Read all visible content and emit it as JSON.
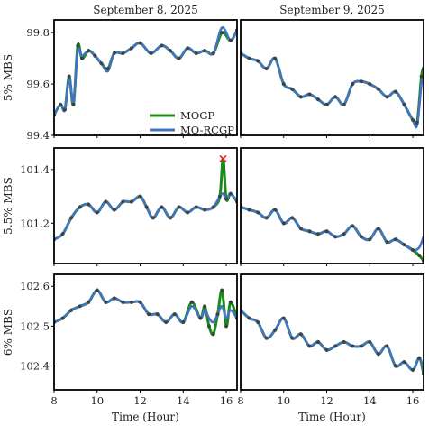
{
  "chart_data": {
    "type": "line",
    "columns": [
      "September 8, 2025",
      "September 9, 2025"
    ],
    "rows": [
      "5% MBS",
      "5.5% MBS",
      "6% MBS"
    ],
    "xlabel": "Time (Hour)",
    "xlim": [
      8,
      16.5
    ],
    "xticks": [
      8,
      10,
      12,
      14,
      16
    ],
    "legend": {
      "placement": "lower-right of top-left panel",
      "entries": [
        "MOGP",
        "MO-RCGP"
      ]
    },
    "colors": {
      "MOGP": "#1a8a1a",
      "MO-RCGP": "#4472c4",
      "observations": "#3a3a3a",
      "outlier": "#e02020"
    },
    "panels": [
      {
        "row": "5% MBS",
        "column": "September 8, 2025",
        "ylim": [
          99.4,
          99.85
        ],
        "yticks": [
          99.4,
          99.6,
          99.8
        ],
        "series": [
          {
            "name": "MOGP",
            "x": [
              8.0,
              8.3,
              8.5,
              8.7,
              8.9,
              9.1,
              9.3,
              9.6,
              9.9,
              10.2,
              10.5,
              10.8,
              11.2,
              11.6,
              12.0,
              12.5,
              13.0,
              13.4,
              13.8,
              14.2,
              14.6,
              15.0,
              15.4,
              15.8,
              16.2,
              16.5
            ],
            "y": [
              99.48,
              99.52,
              99.5,
              99.63,
              99.52,
              99.75,
              99.7,
              99.73,
              99.71,
              99.68,
              99.66,
              99.72,
              99.72,
              99.74,
              99.76,
              99.72,
              99.75,
              99.73,
              99.7,
              99.74,
              99.72,
              99.73,
              99.72,
              99.8,
              99.77,
              99.81
            ]
          },
          {
            "name": "MO-RCGP",
            "x": [
              8.0,
              8.3,
              8.5,
              8.7,
              8.9,
              9.1,
              9.3,
              9.6,
              9.9,
              10.2,
              10.5,
              10.8,
              11.2,
              11.6,
              12.0,
              12.5,
              13.0,
              13.4,
              13.8,
              14.2,
              14.6,
              15.0,
              15.4,
              15.8,
              16.2,
              16.5
            ],
            "y": [
              99.48,
              99.52,
              99.5,
              99.62,
              99.53,
              99.73,
              99.71,
              99.73,
              99.71,
              99.68,
              99.65,
              99.72,
              99.72,
              99.74,
              99.76,
              99.72,
              99.75,
              99.73,
              99.7,
              99.74,
              99.72,
              99.73,
              99.72,
              99.82,
              99.77,
              99.81
            ]
          }
        ]
      },
      {
        "row": "5% MBS",
        "column": "September 9, 2025",
        "ylim": [
          99.4,
          99.85
        ],
        "series": [
          {
            "name": "MOGP",
            "x": [
              8.0,
              8.4,
              8.8,
              9.2,
              9.6,
              10.0,
              10.4,
              10.8,
              11.2,
              11.6,
              12.0,
              12.4,
              12.8,
              13.2,
              13.6,
              14.0,
              14.4,
              14.8,
              15.2,
              15.6,
              16.0,
              16.2,
              16.4,
              16.5
            ],
            "y": [
              99.72,
              99.7,
              99.69,
              99.66,
              99.7,
              99.6,
              99.58,
              99.55,
              99.56,
              99.54,
              99.52,
              99.55,
              99.52,
              99.6,
              99.61,
              99.6,
              99.58,
              99.55,
              99.57,
              99.52,
              99.46,
              99.45,
              99.63,
              99.66
            ]
          },
          {
            "name": "MO-RCGP",
            "x": [
              8.0,
              8.4,
              8.8,
              9.2,
              9.6,
              10.0,
              10.4,
              10.8,
              11.2,
              11.6,
              12.0,
              12.4,
              12.8,
              13.2,
              13.6,
              14.0,
              14.4,
              14.8,
              15.2,
              15.6,
              16.0,
              16.2,
              16.4,
              16.5
            ],
            "y": [
              99.72,
              99.7,
              99.69,
              99.66,
              99.7,
              99.6,
              99.58,
              99.55,
              99.56,
              99.54,
              99.52,
              99.55,
              99.52,
              99.6,
              99.61,
              99.6,
              99.58,
              99.55,
              99.57,
              99.52,
              99.46,
              99.44,
              99.6,
              99.62
            ]
          }
        ]
      },
      {
        "row": "5.5% MBS",
        "column": "September 8, 2025",
        "ylim": [
          101.05,
          101.48
        ],
        "yticks": [
          101.2,
          101.4
        ],
        "outlier": {
          "x": 15.85,
          "y": 101.44
        },
        "series": [
          {
            "name": "MOGP",
            "x": [
              8.0,
              8.4,
              8.8,
              9.2,
              9.6,
              10.0,
              10.4,
              10.8,
              11.2,
              11.6,
              12.0,
              12.3,
              12.6,
              13.0,
              13.4,
              13.8,
              14.2,
              14.6,
              15.0,
              15.4,
              15.7,
              15.85,
              16.0,
              16.2,
              16.5
            ],
            "y": [
              101.14,
              101.16,
              101.22,
              101.26,
              101.27,
              101.24,
              101.28,
              101.25,
              101.28,
              101.28,
              101.3,
              101.26,
              101.22,
              101.26,
              101.22,
              101.26,
              101.24,
              101.26,
              101.25,
              101.26,
              101.3,
              101.44,
              101.29,
              101.31,
              101.28
            ]
          },
          {
            "name": "MO-RCGP",
            "x": [
              8.0,
              8.4,
              8.8,
              9.2,
              9.6,
              10.0,
              10.4,
              10.8,
              11.2,
              11.6,
              12.0,
              12.3,
              12.6,
              13.0,
              13.4,
              13.8,
              14.2,
              14.6,
              15.0,
              15.4,
              15.7,
              15.85,
              16.0,
              16.2,
              16.5
            ],
            "y": [
              101.14,
              101.16,
              101.22,
              101.26,
              101.27,
              101.24,
              101.28,
              101.25,
              101.28,
              101.28,
              101.3,
              101.26,
              101.22,
              101.26,
              101.22,
              101.26,
              101.24,
              101.26,
              101.25,
              101.26,
              101.3,
              101.31,
              101.29,
              101.31,
              101.28
            ]
          }
        ]
      },
      {
        "row": "5.5% MBS",
        "column": "September 9, 2025",
        "ylim": [
          101.05,
          101.48
        ],
        "series": [
          {
            "name": "MOGP",
            "x": [
              8.0,
              8.4,
              8.8,
              9.2,
              9.6,
              10.0,
              10.4,
              10.8,
              11.2,
              11.6,
              12.0,
              12.4,
              12.8,
              13.2,
              13.6,
              14.0,
              14.4,
              14.8,
              15.2,
              15.6,
              16.0,
              16.3,
              16.5
            ],
            "y": [
              101.26,
              101.25,
              101.24,
              101.22,
              101.25,
              101.2,
              101.22,
              101.18,
              101.17,
              101.16,
              101.17,
              101.15,
              101.16,
              101.19,
              101.15,
              101.14,
              101.18,
              101.13,
              101.14,
              101.12,
              101.1,
              101.08,
              101.06
            ]
          },
          {
            "name": "MO-RCGP",
            "x": [
              8.0,
              8.4,
              8.8,
              9.2,
              9.6,
              10.0,
              10.4,
              10.8,
              11.2,
              11.6,
              12.0,
              12.4,
              12.8,
              13.2,
              13.6,
              14.0,
              14.4,
              14.8,
              15.2,
              15.6,
              16.0,
              16.3,
              16.5
            ],
            "y": [
              101.26,
              101.25,
              101.24,
              101.22,
              101.25,
              101.2,
              101.22,
              101.18,
              101.17,
              101.16,
              101.17,
              101.15,
              101.16,
              101.19,
              101.15,
              101.14,
              101.18,
              101.13,
              101.14,
              101.12,
              101.1,
              101.11,
              101.15
            ]
          }
        ]
      },
      {
        "row": "6% MBS",
        "column": "September 8, 2025",
        "ylim": [
          102.34,
          102.63
        ],
        "yticks": [
          102.4,
          102.5,
          102.6
        ],
        "series": [
          {
            "name": "MOGP",
            "x": [
              8.0,
              8.4,
              8.8,
              9.2,
              9.6,
              10.0,
              10.4,
              10.8,
              11.2,
              11.6,
              12.0,
              12.4,
              12.8,
              13.2,
              13.6,
              14.0,
              14.4,
              14.8,
              15.0,
              15.2,
              15.4,
              15.6,
              15.8,
              16.0,
              16.2,
              16.5
            ],
            "y": [
              102.51,
              102.52,
              102.54,
              102.55,
              102.56,
              102.59,
              102.56,
              102.57,
              102.56,
              102.56,
              102.56,
              102.53,
              102.53,
              102.51,
              102.53,
              102.51,
              102.56,
              102.52,
              102.55,
              102.5,
              102.48,
              102.53,
              102.59,
              102.5,
              102.56,
              102.52
            ]
          },
          {
            "name": "MO-RCGP",
            "x": [
              8.0,
              8.4,
              8.8,
              9.2,
              9.6,
              10.0,
              10.4,
              10.8,
              11.2,
              11.6,
              12.0,
              12.4,
              12.8,
              13.2,
              13.6,
              14.0,
              14.4,
              14.8,
              15.0,
              15.2,
              15.4,
              15.6,
              15.8,
              16.0,
              16.2,
              16.5
            ],
            "y": [
              102.51,
              102.52,
              102.54,
              102.55,
              102.56,
              102.59,
              102.56,
              102.57,
              102.56,
              102.56,
              102.56,
              102.53,
              102.53,
              102.51,
              102.53,
              102.51,
              102.55,
              102.52,
              102.54,
              102.52,
              102.51,
              102.53,
              102.55,
              102.52,
              102.54,
              102.52
            ]
          }
        ]
      },
      {
        "row": "6% MBS",
        "column": "September 9, 2025",
        "ylim": [
          102.34,
          102.63
        ],
        "series": [
          {
            "name": "MOGP",
            "x": [
              8.0,
              8.4,
              8.8,
              9.2,
              9.6,
              10.0,
              10.4,
              10.8,
              11.2,
              11.6,
              12.0,
              12.4,
              12.8,
              13.2,
              13.6,
              14.0,
              14.4,
              14.8,
              15.2,
              15.6,
              16.0,
              16.3,
              16.5
            ],
            "y": [
              102.54,
              102.52,
              102.51,
              102.47,
              102.49,
              102.52,
              102.47,
              102.48,
              102.45,
              102.46,
              102.44,
              102.45,
              102.46,
              102.45,
              102.45,
              102.46,
              102.43,
              102.45,
              102.4,
              102.41,
              102.39,
              102.42,
              102.38
            ]
          },
          {
            "name": "MO-RCGP",
            "x": [
              8.0,
              8.4,
              8.8,
              9.2,
              9.6,
              10.0,
              10.4,
              10.8,
              11.2,
              11.6,
              12.0,
              12.4,
              12.8,
              13.2,
              13.6,
              14.0,
              14.4,
              14.8,
              15.2,
              15.6,
              16.0,
              16.3,
              16.5
            ],
            "y": [
              102.54,
              102.52,
              102.51,
              102.47,
              102.49,
              102.52,
              102.47,
              102.48,
              102.45,
              102.46,
              102.44,
              102.45,
              102.46,
              102.45,
              102.45,
              102.46,
              102.43,
              102.45,
              102.4,
              102.41,
              102.39,
              102.42,
              102.39
            ]
          }
        ]
      }
    ]
  }
}
